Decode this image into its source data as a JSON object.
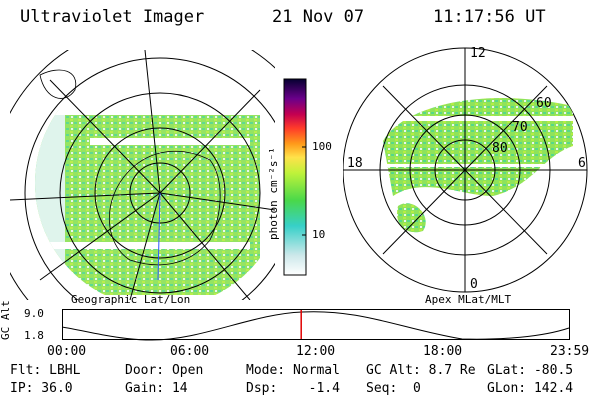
{
  "header": {
    "instrument": "Ultraviolet Imager",
    "date": "21 Nov 07",
    "time": "11:17:56 UT"
  },
  "left_panel": {
    "caption": "Geographic Lat/Lon"
  },
  "right_panel": {
    "caption": "Apex MLat/MLT",
    "mlt_labels": [
      "12",
      "18",
      "6",
      "0"
    ],
    "mlat_labels": [
      "60",
      "70",
      "80"
    ]
  },
  "colorbar": {
    "unit_label": "photon cm⁻²s⁻¹",
    "ticks": [
      "100",
      "10"
    ],
    "scale": "log"
  },
  "timeline": {
    "axis_label": "GC Alt",
    "y_ticks": [
      "9.0",
      "1.8"
    ],
    "x_ticks": [
      "00:00",
      "06:00",
      "12:00",
      "18:00",
      "23:59"
    ],
    "current_time_fraction": 0.4708,
    "marker_color": "#e00000"
  },
  "footer": {
    "row1": {
      "flt": "Flt: LBHL",
      "door": "Door: Open",
      "mode": "Mode: Normal",
      "gcalt": "GC Alt: 8.7 Re",
      "glat": "GLat: -80.5"
    },
    "row2": {
      "ip": "IP: 36.0",
      "gain": "Gain: 14",
      "dsp": "Dsp:    -1.4",
      "seq": "Seq:  0",
      "glon": "GLon: 142.4"
    }
  }
}
